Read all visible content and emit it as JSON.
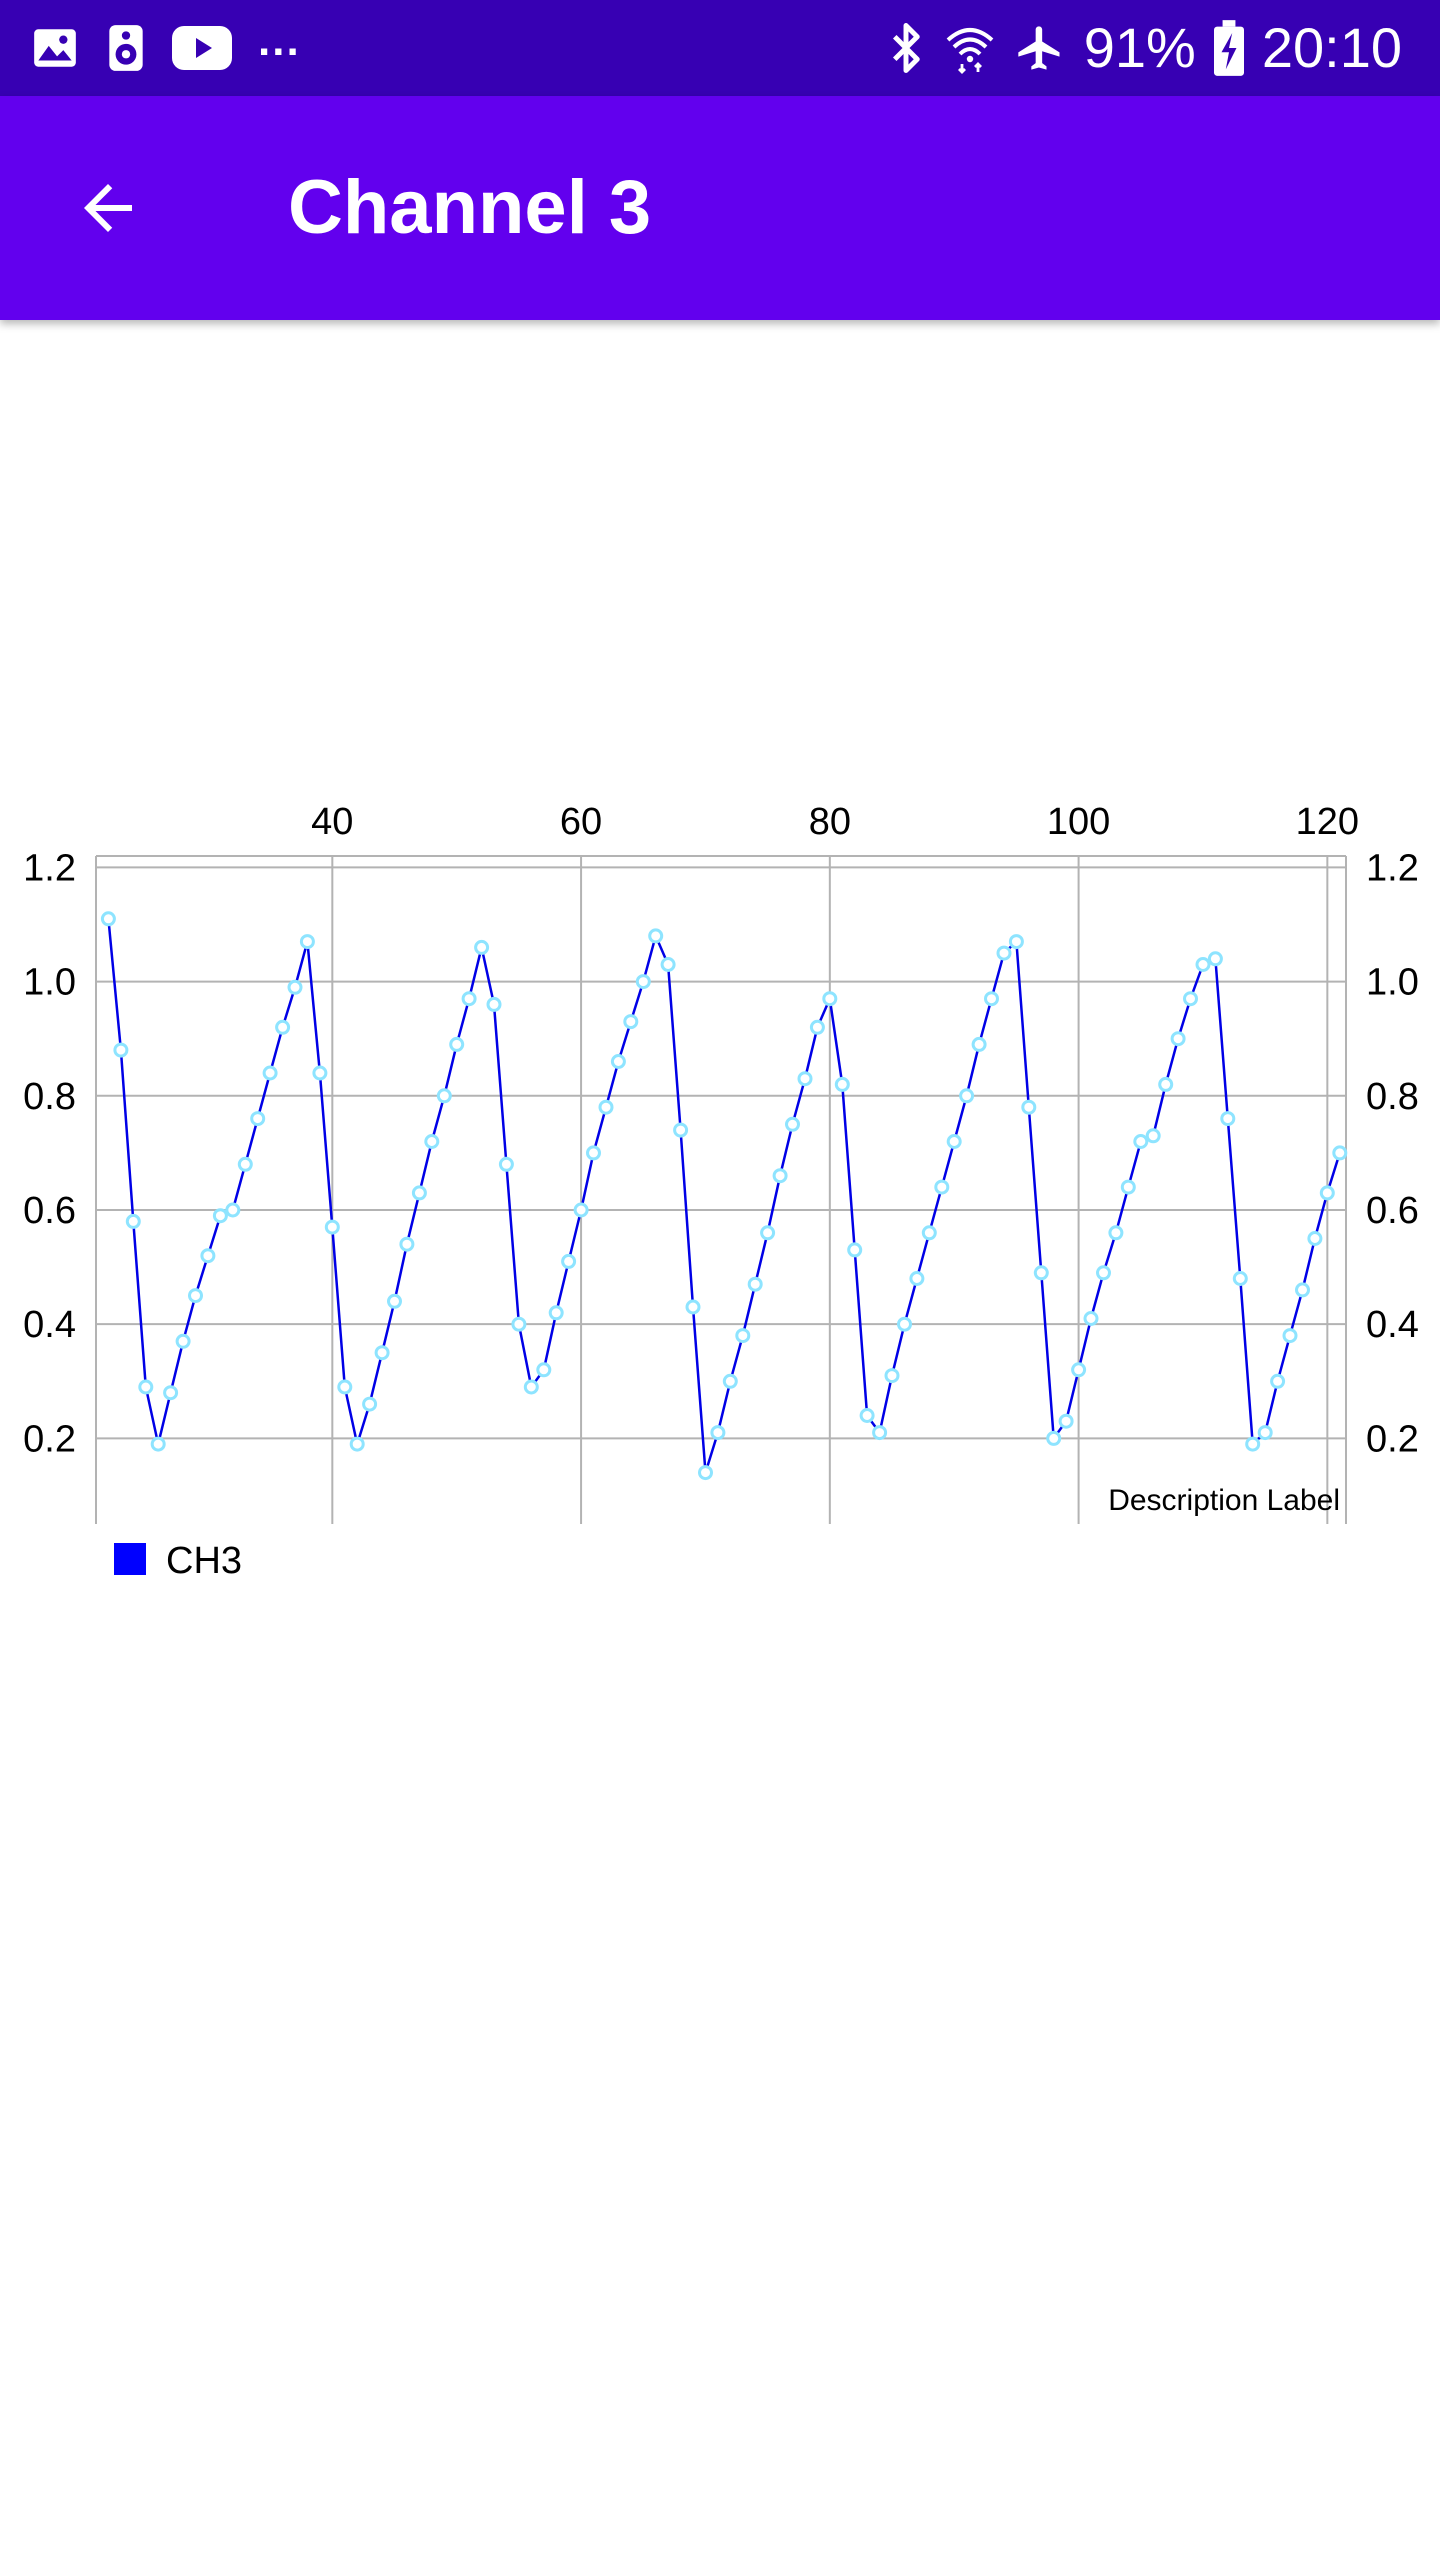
{
  "status_bar": {
    "left_icons": [
      "image-icon",
      "speaker-icon",
      "youtube-icon"
    ],
    "more_indicator": "...",
    "right_icons": [
      "bluetooth-icon",
      "wifi-icon",
      "airplane-icon"
    ],
    "battery_percent": "91%",
    "battery_icon": "battery-charging-icon",
    "time": "20:10"
  },
  "app_bar": {
    "back_icon": "arrow-back-icon",
    "title": "Channel 3"
  },
  "colors": {
    "status_bar": "#3700b3",
    "app_bar": "#6200ee",
    "line": "#0000e6",
    "marker": "#8ee4ff",
    "legend": "#0000ff",
    "grid": "#b3b3b3"
  },
  "chart_data": {
    "type": "line",
    "title": "",
    "description_label": "Description Label",
    "xlabel": "",
    "ylabel": "",
    "xlim": [
      21,
      121.5
    ],
    "ylim": [
      0.05,
      1.22
    ],
    "x_ticks": [
      "40",
      "60",
      "80",
      "100",
      "120"
    ],
    "x_tick_values": [
      40,
      60,
      80,
      100,
      120
    ],
    "y_ticks": [
      "0.2",
      "0.4",
      "0.6",
      "0.8",
      "1.0",
      "1.2"
    ],
    "y_tick_values": [
      0.2,
      0.4,
      0.6,
      0.8,
      1.0,
      1.2
    ],
    "x_axis_position": "top",
    "y_axis": "left-and-right",
    "grid": true,
    "legend_position": "bottom-left",
    "series": [
      {
        "name": "CH3",
        "x_start": 22,
        "x_step": 1,
        "values": [
          1.11,
          0.88,
          0.58,
          0.29,
          0.19,
          0.28,
          0.37,
          0.45,
          0.52,
          0.59,
          0.6,
          0.68,
          0.76,
          0.84,
          0.92,
          0.99,
          1.07,
          0.84,
          0.57,
          0.29,
          0.19,
          0.26,
          0.35,
          0.44,
          0.54,
          0.63,
          0.72,
          0.8,
          0.89,
          0.97,
          1.06,
          0.96,
          0.68,
          0.4,
          0.29,
          0.32,
          0.42,
          0.51,
          0.6,
          0.7,
          0.78,
          0.86,
          0.93,
          1.0,
          1.08,
          1.03,
          0.74,
          0.43,
          0.14,
          0.21,
          0.3,
          0.38,
          0.47,
          0.56,
          0.66,
          0.75,
          0.83,
          0.92,
          0.97,
          0.82,
          0.53,
          0.24,
          0.21,
          0.31,
          0.4,
          0.48,
          0.56,
          0.64,
          0.72,
          0.8,
          0.89,
          0.97,
          1.05,
          1.07,
          0.78,
          0.49,
          0.2,
          0.23,
          0.32,
          0.41,
          0.49,
          0.56,
          0.64,
          0.72,
          0.73,
          0.82,
          0.9,
          0.97,
          1.03,
          1.04,
          0.76,
          0.48,
          0.19,
          0.21,
          0.3,
          0.38,
          0.46,
          0.55,
          0.63,
          0.7
        ]
      }
    ]
  }
}
